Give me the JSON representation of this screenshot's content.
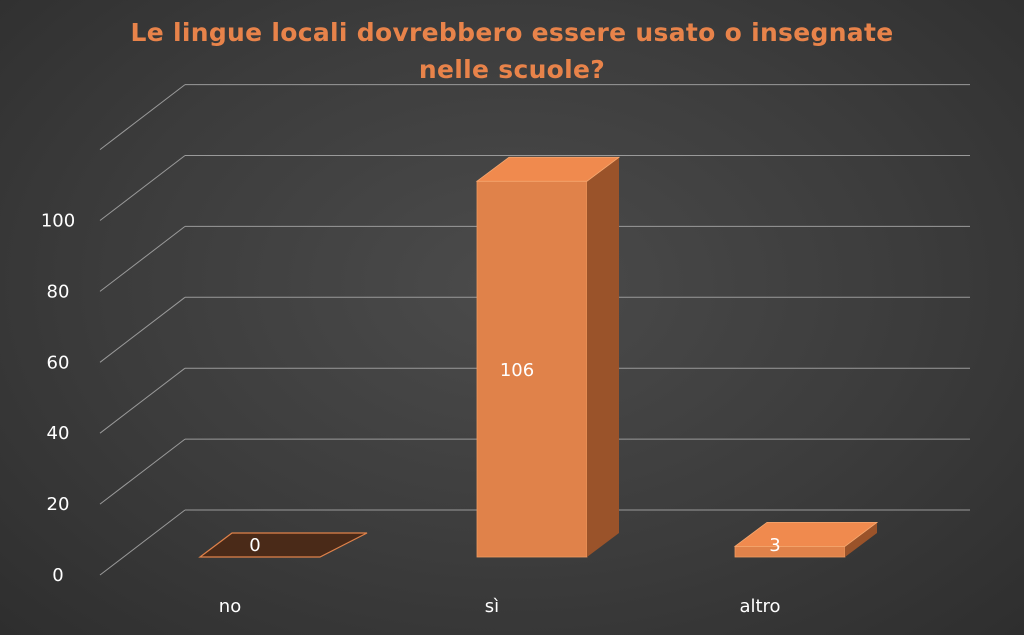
{
  "chart_data": {
    "type": "bar",
    "title_lines": [
      "Le lingue locali dovrebbero essere usato o insegnate",
      "nelle scuole?"
    ],
    "categories": [
      "no",
      "sì",
      "altro"
    ],
    "values": [
      0,
      106,
      3
    ],
    "data_labels": [
      "0",
      "106",
      "3"
    ],
    "y_ticks": [
      "0",
      "20",
      "40",
      "60",
      "80",
      "100"
    ],
    "ylim": [
      0,
      120
    ],
    "grid": true,
    "legend": "none",
    "bar_color": "#e0824a",
    "bar_side_color": "#9a532a",
    "bar_top_color": "#f08a4e",
    "zero_bar_color": "#4a2a18",
    "title_color": "#e8834a",
    "label_color": "#ffffff"
  }
}
